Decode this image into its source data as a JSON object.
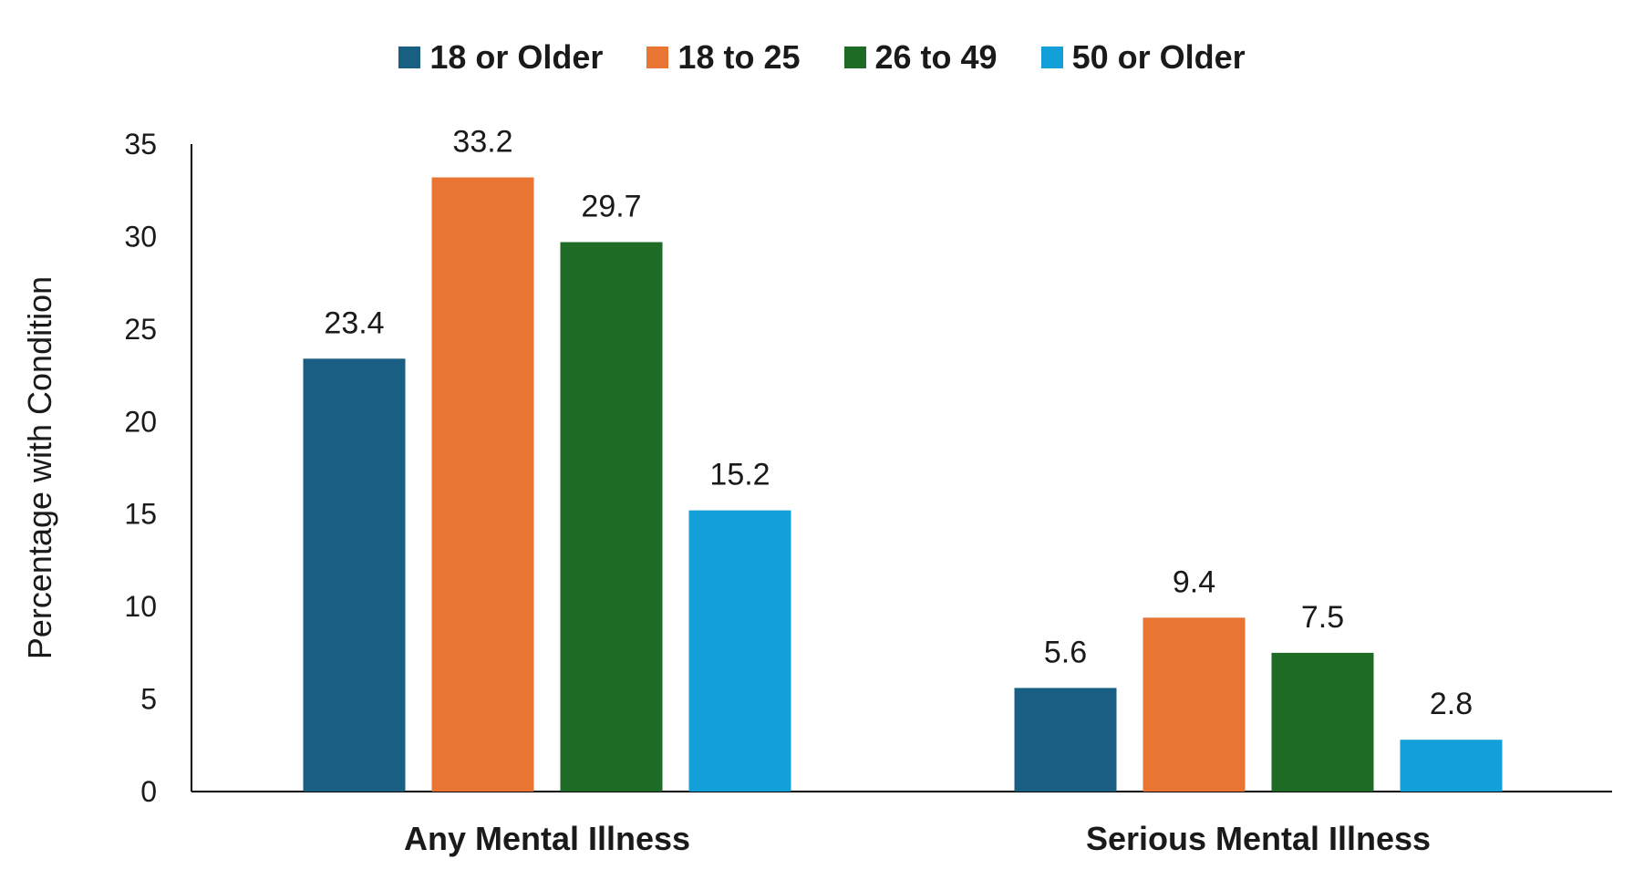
{
  "chart_data": {
    "type": "bar",
    "categories": [
      "Any Mental Illness",
      "Serious Mental Illness"
    ],
    "series": [
      {
        "name": "18 or Older",
        "color": "#185f83",
        "values": [
          23.4,
          5.6
        ]
      },
      {
        "name": "18 to 25",
        "color": "#e97534",
        "values": [
          33.2,
          9.4
        ]
      },
      {
        "name": "26 to 49",
        "color": "#1e6b25",
        "values": [
          29.7,
          7.5
        ]
      },
      {
        "name": "50 or Older",
        "color": "#139fd7",
        "values": [
          15.2,
          2.8
        ]
      }
    ],
    "ylabel": "Percentage with Condition",
    "ylim": [
      0,
      35
    ],
    "yticks": [
      0,
      5,
      10,
      15,
      20,
      25,
      30,
      35
    ],
    "legend": "top",
    "grid": false
  }
}
